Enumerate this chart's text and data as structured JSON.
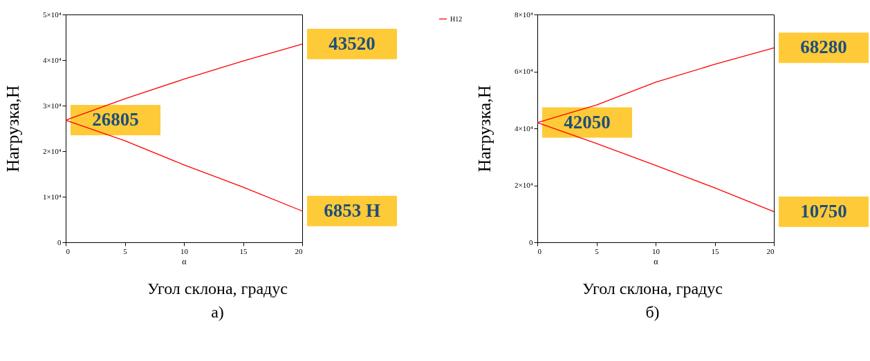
{
  "chart_data": [
    {
      "type": "line",
      "xlabel": "α",
      "ylabel": "Нагрузка,Н",
      "x": [
        0,
        5,
        10,
        15,
        20
      ],
      "series": [
        {
          "color": "#ff0000",
          "values": [
            26805,
            31500,
            35800,
            39800,
            43520
          ],
          "value_labels": [
            "26805",
            null,
            null,
            null,
            "43520"
          ]
        },
        {
          "color": "#ff0000",
          "values": [
            26805,
            22300,
            17000,
            12100,
            6853
          ],
          "value_labels": [
            null,
            null,
            null,
            null,
            "6853 Н"
          ]
        }
      ],
      "xlim": [
        0,
        20
      ],
      "xticks": [
        0,
        5,
        10,
        15,
        20
      ],
      "ylim": [
        0,
        50000
      ],
      "yticks": [
        0,
        {
          "value": 10000,
          "label": "1×10⁴"
        },
        {
          "value": 20000,
          "label": "2×10⁴"
        },
        {
          "value": 30000,
          "label": "3×10⁴"
        },
        {
          "value": 40000,
          "label": "4×10⁴"
        },
        {
          "value": 50000,
          "label": "5×10⁴"
        }
      ],
      "grid": false,
      "marker": "none",
      "line_style": "solid",
      "annotations": [
        "Угол склона, градус",
        "а)"
      ]
    },
    {
      "type": "line",
      "xlabel": "α",
      "ylabel": "Нагрузка,Н",
      "x": [
        0,
        5,
        10,
        15,
        20
      ],
      "series": [
        {
          "name": "H12",
          "color": "#ff0000",
          "values": [
            42050,
            48200,
            56200,
            62500,
            68280
          ],
          "value_labels": [
            "42050",
            null,
            null,
            null,
            "68280"
          ]
        },
        {
          "color": "#ff0000",
          "values": [
            42050,
            34700,
            27000,
            19100,
            10750
          ],
          "value_labels": [
            null,
            null,
            null,
            null,
            "10750"
          ]
        }
      ],
      "xlim": [
        0,
        20
      ],
      "xticks": [
        0,
        5,
        10,
        15,
        20
      ],
      "ylim": [
        0,
        80000
      ],
      "yticks": [
        0,
        {
          "value": 20000,
          "label": "2×10⁴"
        },
        {
          "value": 40000,
          "label": "4×10⁴"
        },
        {
          "value": 60000,
          "label": "6×10⁴"
        },
        {
          "value": 80000,
          "label": "8×10⁴"
        }
      ],
      "grid": false,
      "marker": "none",
      "line_style": "solid",
      "legend": "left",
      "annotations": [
        "Угол склона, градус",
        "б)"
      ]
    }
  ]
}
